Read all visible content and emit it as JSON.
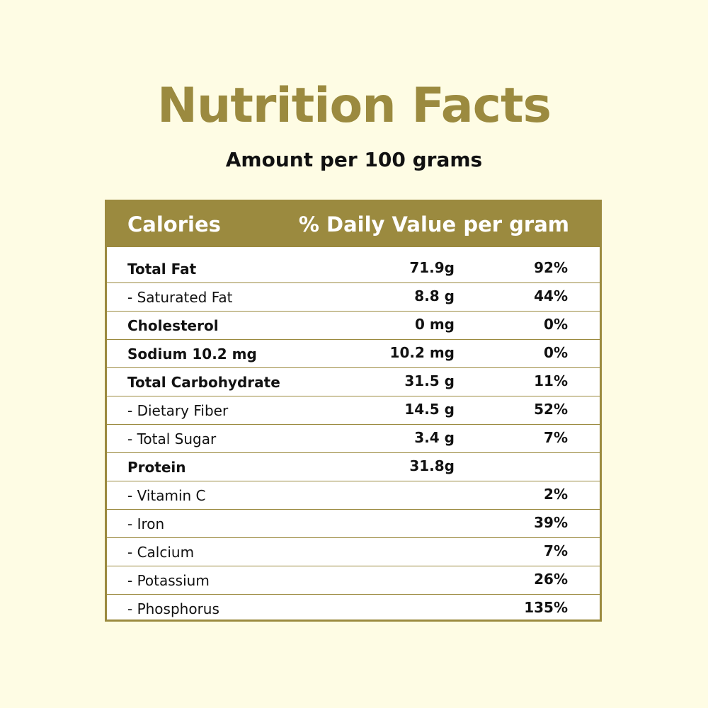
{
  "title": "Nutrition Facts",
  "subtitle": "Amount per 100 grams",
  "colors": {
    "accent": "#9b8a3f",
    "background": "#fefce4",
    "table_bg": "#ffffff"
  },
  "table": {
    "header": {
      "col1": "Calories",
      "col2": "% Daily Value per gram"
    },
    "rows": [
      {
        "name": "Total Fat",
        "amount": "71.9g",
        "dv": "92%",
        "bold": true
      },
      {
        "name": "- Saturated Fat",
        "amount": "8.8 g",
        "dv": "44%",
        "bold": false
      },
      {
        "name": "Cholesterol",
        "amount": "0 mg",
        "dv": "0%",
        "bold": true
      },
      {
        "name": "Sodium 10.2 mg",
        "amount": "10.2 mg",
        "dv": "0%",
        "bold": true
      },
      {
        "name": "Total Carbohydrate",
        "amount": "31.5 g",
        "dv": "11%",
        "bold": true
      },
      {
        "name": "- Dietary Fiber",
        "amount": "14.5 g",
        "dv": "52%",
        "bold": false
      },
      {
        "name": "- Total Sugar",
        "amount": "3.4 g",
        "dv": "7%",
        "bold": false
      },
      {
        "name": "Protein",
        "amount": "31.8g",
        "dv": "",
        "bold": true
      },
      {
        "name": "- Vitamin C",
        "amount": "",
        "dv": "2%",
        "bold": false
      },
      {
        "name": "- Iron",
        "amount": "",
        "dv": "39%",
        "bold": false
      },
      {
        "name": "- Calcium",
        "amount": "",
        "dv": "7%",
        "bold": false
      },
      {
        "name": "- Potassium",
        "amount": "",
        "dv": "26%",
        "bold": false
      },
      {
        "name": "- Phosphorus",
        "amount": "",
        "dv": "135%",
        "bold": false
      }
    ]
  }
}
